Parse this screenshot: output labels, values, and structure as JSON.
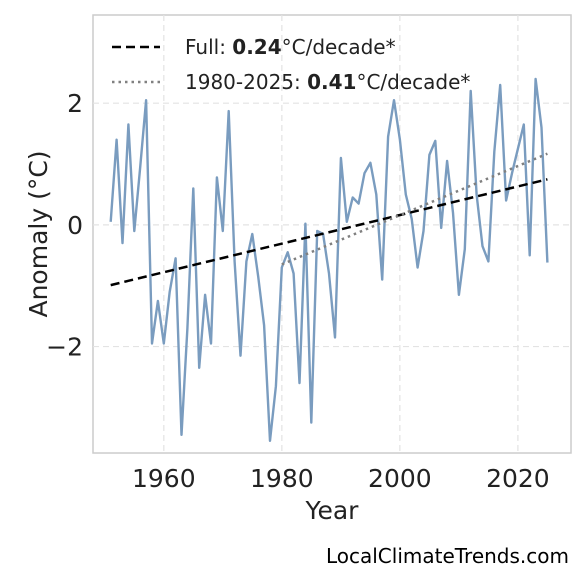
{
  "chart_data": {
    "type": "line",
    "xlabel": "Year",
    "ylabel": "Anomaly (°C)",
    "xlim": [
      1948,
      2029
    ],
    "ylim": [
      -3.75,
      3.45
    ],
    "xticks": [
      1960,
      1980,
      2000,
      2020
    ],
    "yticks": [
      -2,
      0,
      2
    ],
    "ytick_labels": [
      "−2",
      "0",
      "2"
    ],
    "grid": true,
    "legend_position": "top-left",
    "series": [
      {
        "style": "solid",
        "color": "#7a9cbf",
        "x": [
          1951,
          1952,
          1953,
          1954,
          1955,
          1956,
          1957,
          1958,
          1959,
          1960,
          1961,
          1962,
          1963,
          1964,
          1965,
          1966,
          1967,
          1968,
          1969,
          1970,
          1971,
          1972,
          1973,
          1974,
          1975,
          1976,
          1977,
          1978,
          1979,
          1980,
          1981,
          1982,
          1983,
          1984,
          1985,
          1986,
          1987,
          1988,
          1989,
          1990,
          1991,
          1992,
          1993,
          1994,
          1995,
          1996,
          1997,
          1998,
          1999,
          2000,
          2001,
          2002,
          2003,
          2004,
          2005,
          2006,
          2007,
          2008,
          2009,
          2010,
          2011,
          2012,
          2013,
          2014,
          2015,
          2016,
          2017,
          2018,
          2019,
          2020,
          2021,
          2022,
          2023,
          2024,
          2025
        ],
        "y": [
          0.05,
          1.4,
          -0.3,
          1.65,
          -0.1,
          0.95,
          2.05,
          -1.95,
          -1.25,
          -1.95,
          -1.1,
          -0.55,
          -3.45,
          -1.7,
          0.6,
          -2.35,
          -1.15,
          -1.95,
          0.78,
          -0.1,
          1.87,
          -0.6,
          -2.15,
          -0.6,
          -0.15,
          -0.85,
          -1.65,
          -3.55,
          -2.65,
          -0.7,
          -0.45,
          -0.8,
          -2.6,
          0.02,
          -3.25,
          -0.1,
          -0.15,
          -0.8,
          -1.85,
          1.1,
          0.05,
          0.45,
          0.35,
          0.85,
          1.02,
          0.5,
          -0.9,
          1.45,
          2.05,
          1.4,
          0.5,
          0.1,
          -0.7,
          -0.1,
          1.15,
          1.38,
          -0.05,
          1.05,
          0.2,
          -1.15,
          -0.4,
          2.2,
          0.5,
          -0.35,
          -0.6,
          1.2,
          2.3,
          0.4,
          0.85,
          1.25,
          1.65,
          -0.5,
          2.4,
          1.6,
          -0.62
        ]
      },
      {
        "name": "Full: 0.24°C/decade*",
        "style": "dashed",
        "color": "#000000",
        "x": [
          1951,
          2025
        ],
        "y": [
          -0.99,
          0.75
        ]
      },
      {
        "name": "1980-2025: 0.41°C/decade*",
        "style": "dotted",
        "color": "#808080",
        "x": [
          1980,
          2025
        ],
        "y": [
          -0.65,
          1.17
        ]
      }
    ],
    "legend": [
      {
        "prefix": "Full: ",
        "value": "0.24",
        "suffix": "°C/decade*"
      },
      {
        "prefix": "1980-2025: ",
        "value": "0.41",
        "suffix": "°C/decade*"
      }
    ]
  },
  "watermark": "LocalClimateTrends.com"
}
